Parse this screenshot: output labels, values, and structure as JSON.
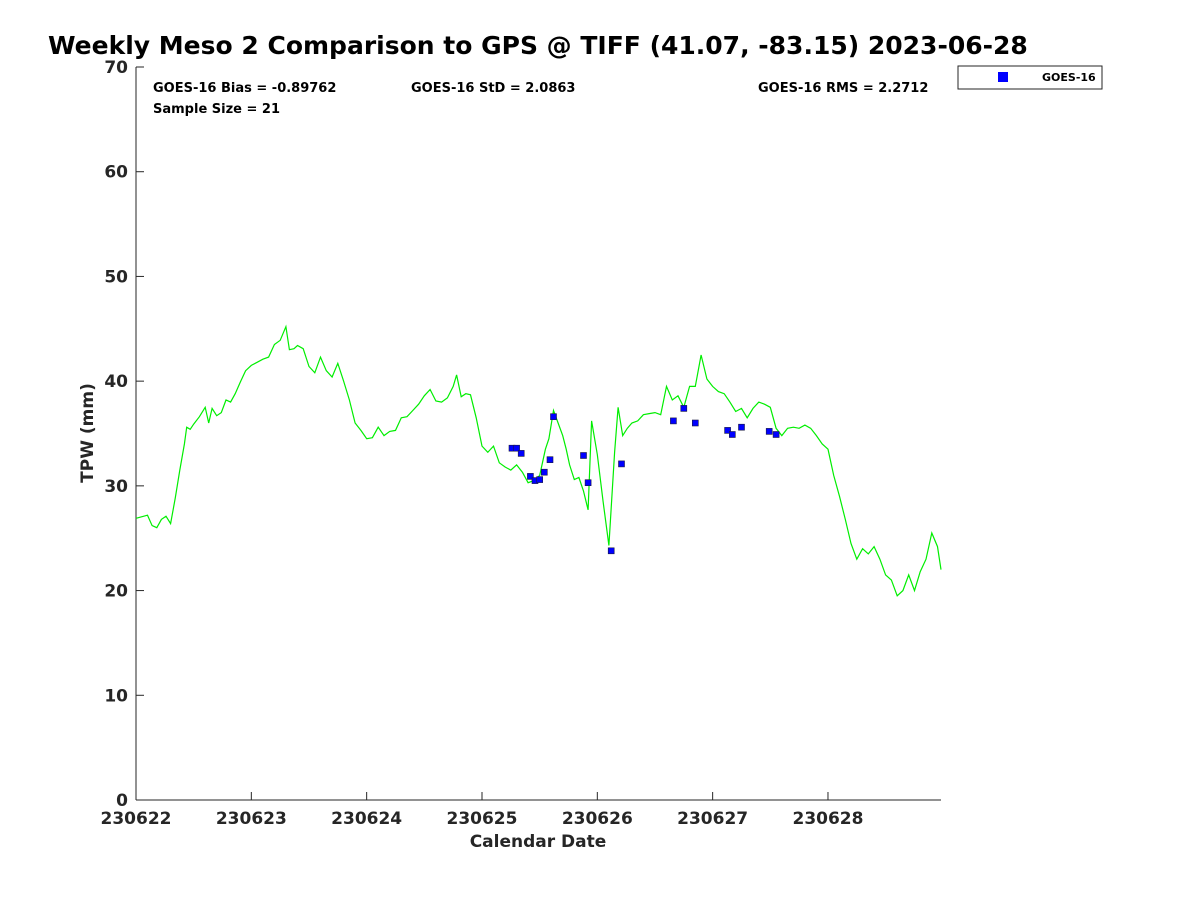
{
  "chart_data": {
    "type": "line",
    "title": "Weekly Meso 2 Comparison to GPS @ TIFF (41.07, -83.15) 2023-06-28",
    "xlabel": "Calendar Date",
    "ylabel": "TPW (mm)",
    "xlim": [
      0,
      6.98
    ],
    "ylim": [
      0,
      70
    ],
    "yticks": [
      0,
      10,
      20,
      30,
      40,
      50,
      60,
      70
    ],
    "ytick_labels": [
      "0",
      "10",
      "20",
      "30",
      "40",
      "50",
      "60",
      "70"
    ],
    "xticks": [
      0,
      1,
      2,
      3,
      4,
      5,
      6
    ],
    "xtick_labels": [
      "230622",
      "230623",
      "230624",
      "230625",
      "230626",
      "230627",
      "230628"
    ],
    "grid": false,
    "legend_position": "top-right-outside",
    "stats": {
      "bias": "GOES-16 Bias = -0.89762",
      "std": "GOES-16 StD = 2.0863",
      "rms": "GOES-16 RMS = 2.2712",
      "sample_size": "Sample Size = 21"
    },
    "series": [
      {
        "type": "line",
        "color": "#00ee00",
        "x": [
          0.0,
          0.1,
          0.14,
          0.18,
          0.22,
          0.26,
          0.3,
          0.34,
          0.38,
          0.42,
          0.44,
          0.47,
          0.5,
          0.55,
          0.6,
          0.63,
          0.66,
          0.7,
          0.74,
          0.78,
          0.82,
          0.86,
          0.9,
          0.95,
          1.0,
          1.05,
          1.1,
          1.15,
          1.2,
          1.25,
          1.3,
          1.33,
          1.37,
          1.4,
          1.45,
          1.5,
          1.55,
          1.6,
          1.65,
          1.7,
          1.75,
          1.8,
          1.85,
          1.9,
          1.95,
          2.0,
          2.05,
          2.1,
          2.15,
          2.2,
          2.25,
          2.3,
          2.35,
          2.4,
          2.45,
          2.5,
          2.55,
          2.6,
          2.65,
          2.7,
          2.75,
          2.78,
          2.82,
          2.86,
          2.9,
          2.95,
          3.0,
          3.05,
          3.1,
          3.15,
          3.2,
          3.25,
          3.3,
          3.35,
          3.4,
          3.45,
          3.5,
          3.55,
          3.58,
          3.62,
          3.66,
          3.7,
          3.73,
          3.76,
          3.8,
          3.84,
          3.88,
          3.92,
          3.95,
          4.0,
          4.05,
          4.1,
          4.15,
          4.18,
          4.22,
          4.26,
          4.3,
          4.35,
          4.4,
          4.45,
          4.5,
          4.55,
          4.6,
          4.65,
          4.7,
          4.75,
          4.8,
          4.85,
          4.9,
          4.95,
          5.0,
          5.05,
          5.1,
          5.15,
          5.2,
          5.25,
          5.3,
          5.35,
          5.4,
          5.45,
          5.5,
          5.55,
          5.6,
          5.65,
          5.7,
          5.75,
          5.8,
          5.85,
          5.9,
          5.95,
          6.0,
          6.05,
          6.1,
          6.15,
          6.2,
          6.25,
          6.3,
          6.35,
          6.4,
          6.45,
          6.5,
          6.55,
          6.6,
          6.65,
          6.7,
          6.75,
          6.8,
          6.85,
          6.9,
          6.95,
          6.98
        ],
        "y": [
          26.9,
          27.2,
          26.2,
          26.0,
          26.8,
          27.1,
          26.4,
          28.8,
          31.5,
          34.0,
          35.6,
          35.4,
          35.9,
          36.6,
          37.5,
          36.0,
          37.4,
          36.7,
          37.0,
          38.2,
          38.0,
          38.8,
          39.8,
          41.0,
          41.5,
          41.8,
          42.1,
          42.3,
          43.5,
          43.9,
          45.2,
          43.0,
          43.1,
          43.4,
          43.1,
          41.4,
          40.8,
          42.3,
          41.0,
          40.4,
          41.7,
          40.0,
          38.2,
          36.0,
          35.3,
          34.5,
          34.6,
          35.6,
          34.8,
          35.2,
          35.3,
          36.5,
          36.6,
          37.2,
          37.8,
          38.6,
          39.2,
          38.1,
          38.0,
          38.4,
          39.5,
          40.6,
          38.5,
          38.8,
          38.7,
          36.5,
          33.8,
          33.2,
          33.8,
          32.2,
          31.8,
          31.5,
          32.0,
          31.3,
          30.3,
          30.5,
          31.0,
          33.5,
          34.5,
          37.2,
          36.0,
          34.8,
          33.5,
          32.0,
          30.6,
          30.8,
          29.5,
          27.7,
          36.2,
          33.0,
          28.5,
          24.3,
          33.2,
          37.5,
          34.8,
          35.5,
          36.0,
          36.2,
          36.8,
          36.9,
          37.0,
          36.8,
          39.5,
          38.2,
          38.6,
          37.5,
          39.5,
          39.5,
          42.5,
          40.2,
          39.5,
          39.0,
          38.8,
          38.0,
          37.1,
          37.4,
          36.5,
          37.4,
          38.0,
          37.8,
          37.5,
          35.5,
          34.8,
          35.5,
          35.6,
          35.5,
          35.8,
          35.5,
          34.8,
          34.0,
          33.5,
          31.0,
          29.0,
          26.8,
          24.5,
          23.0,
          24.0,
          23.5,
          24.2,
          23.0,
          21.5,
          21.0,
          19.5,
          20.0,
          21.5,
          20.0,
          21.8,
          23.0,
          25.5,
          24.2,
          22.0
        ]
      },
      {
        "type": "scatter",
        "name": "GOES-16",
        "color": "#0000ff",
        "x": [
          3.26,
          3.3,
          3.34,
          3.42,
          3.46,
          3.5,
          3.54,
          3.59,
          3.62,
          3.88,
          3.92,
          4.12,
          4.21,
          4.66,
          4.75,
          4.85,
          5.13,
          5.17,
          5.25,
          5.49,
          5.55
        ],
        "y": [
          33.6,
          33.6,
          33.1,
          30.9,
          30.5,
          30.6,
          31.3,
          32.5,
          36.6,
          32.9,
          30.3,
          23.8,
          32.1,
          36.2,
          37.4,
          36.0,
          35.3,
          34.9,
          35.6,
          35.2,
          34.9
        ]
      }
    ]
  }
}
